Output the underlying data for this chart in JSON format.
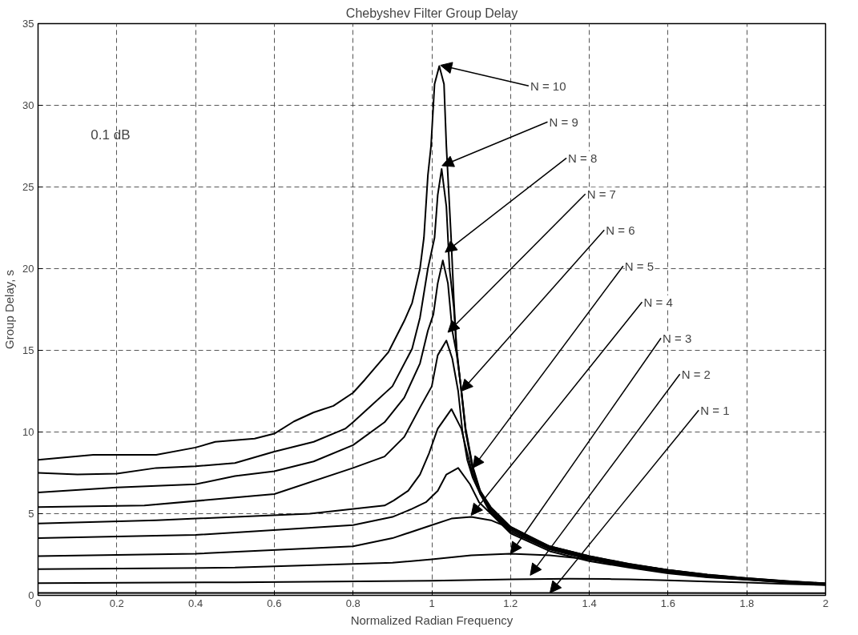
{
  "chart_data": {
    "type": "line",
    "title": "Chebyshev Filter Group Delay",
    "xlabel": "Normalized Radian Frequency",
    "ylabel": "Group Delay, s",
    "xlim": [
      0,
      2
    ],
    "ylim": [
      0,
      35
    ],
    "xticks": [
      0,
      0.2,
      0.4,
      0.6,
      0.8,
      1,
      1.2,
      1.4,
      1.6,
      1.8,
      2
    ],
    "yticks": [
      0,
      5,
      10,
      15,
      20,
      25,
      30,
      35
    ],
    "grid": true,
    "line_style": "solid",
    "series": [
      {
        "color": "#000000",
        "x": [
          0,
          0.14,
          0.3,
          0.4,
          0.45,
          0.55,
          0.6,
          0.65,
          0.7,
          0.75,
          0.8,
          0.83,
          0.89,
          0.93,
          0.95,
          0.97,
          0.98,
          0.99,
          0.998,
          1.007,
          1.019,
          1.031,
          1.037,
          1.049,
          1.056,
          1.063,
          1.075,
          1.086,
          1.104,
          1.123,
          1.15,
          1.2,
          1.3,
          1.4,
          1.5,
          1.6,
          1.7,
          1.8,
          1.9,
          2.0
        ],
        "values": [
          8.3,
          8.6,
          8.6,
          9.05,
          9.4,
          9.6,
          9.9,
          10.65,
          11.2,
          11.6,
          12.4,
          13.2,
          14.9,
          16.8,
          17.9,
          20.0,
          21.9,
          25.7,
          27.5,
          31.3,
          32.4,
          31.3,
          27.5,
          21.9,
          18.1,
          15.1,
          12.5,
          10.0,
          7.7,
          6.2,
          5.0,
          3.8,
          2.7,
          2.1,
          1.7,
          1.35,
          1.1,
          0.95,
          0.78,
          0.65
        ]
      },
      {
        "color": "#000000",
        "x": [
          0,
          0.1,
          0.2,
          0.3,
          0.4,
          0.5,
          0.6,
          0.7,
          0.78,
          0.8,
          0.9,
          0.95,
          0.97,
          0.99,
          1.007,
          1.015,
          1.025,
          1.037,
          1.045,
          1.056,
          1.063,
          1.075,
          1.086,
          1.104,
          1.123,
          1.15,
          1.2,
          1.3,
          1.4,
          1.5,
          1.6,
          1.7,
          1.8,
          1.9,
          2.0
        ],
        "values": [
          7.5,
          7.4,
          7.45,
          7.8,
          7.9,
          8.1,
          8.8,
          9.4,
          10.2,
          10.6,
          12.8,
          15.1,
          17.0,
          20.0,
          21.9,
          24.5,
          26.1,
          23.8,
          20.0,
          17.6,
          15.0,
          12.5,
          10.1,
          7.8,
          6.3,
          5.1,
          3.9,
          2.8,
          2.2,
          1.75,
          1.4,
          1.13,
          0.97,
          0.8,
          0.67
        ]
      },
      {
        "color": "#000000",
        "x": [
          0,
          0.2,
          0.4,
          0.5,
          0.6,
          0.7,
          0.8,
          0.88,
          0.93,
          0.97,
          0.99,
          1.004,
          1.015,
          1.028,
          1.041,
          1.052,
          1.063,
          1.075,
          1.086,
          1.104,
          1.123,
          1.15,
          1.2,
          1.3,
          1.4,
          1.5,
          1.6,
          1.7,
          1.8,
          1.9,
          2.0
        ],
        "values": [
          6.3,
          6.6,
          6.8,
          7.3,
          7.6,
          8.2,
          9.2,
          10.6,
          12.1,
          14.2,
          16.2,
          17.2,
          19.1,
          20.5,
          19.1,
          16.2,
          14.8,
          12.6,
          10.2,
          7.9,
          6.4,
          5.2,
          4.0,
          2.85,
          2.25,
          1.8,
          1.45,
          1.16,
          0.98,
          0.82,
          0.68
        ]
      },
      {
        "color": "#000000",
        "x": [
          0,
          0.27,
          0.6,
          0.8,
          0.88,
          0.93,
          0.97,
          1.0,
          1.015,
          1.037,
          1.052,
          1.067,
          1.078,
          1.09,
          1.104,
          1.123,
          1.15,
          1.2,
          1.3,
          1.4,
          1.5,
          1.6,
          1.7,
          1.8,
          1.9,
          2.0
        ],
        "values": [
          5.4,
          5.5,
          6.2,
          7.8,
          8.5,
          9.7,
          11.5,
          12.8,
          14.7,
          15.6,
          14.5,
          12.5,
          10.0,
          8.3,
          7.2,
          6.2,
          5.3,
          4.1,
          2.9,
          2.3,
          1.85,
          1.5,
          1.2,
          1.0,
          0.84,
          0.7
        ]
      },
      {
        "color": "#000000",
        "x": [
          0,
          0.3,
          0.69,
          0.88,
          0.903,
          0.94,
          0.97,
          0.993,
          1.015,
          1.05,
          1.075,
          1.09,
          1.104,
          1.123,
          1.15,
          1.2,
          1.3,
          1.4,
          1.5,
          1.6,
          1.7,
          1.8,
          1.9,
          2.0
        ],
        "values": [
          4.4,
          4.6,
          5.0,
          5.5,
          5.8,
          6.4,
          7.4,
          8.7,
          10.2,
          11.4,
          10.2,
          8.7,
          7.4,
          6.4,
          5.4,
          4.2,
          2.95,
          2.35,
          1.9,
          1.52,
          1.22,
          1.02,
          0.85,
          0.71
        ]
      },
      {
        "color": "#000000",
        "x": [
          0,
          0.4,
          0.8,
          0.9,
          0.95,
          0.985,
          1.015,
          1.037,
          1.067,
          1.097,
          1.12,
          1.15,
          1.2,
          1.3,
          1.4,
          1.5,
          1.6,
          1.7,
          1.8,
          1.9,
          2.0
        ],
        "values": [
          3.5,
          3.7,
          4.3,
          4.8,
          5.3,
          5.7,
          6.4,
          7.4,
          7.8,
          6.8,
          5.7,
          5.0,
          4.2,
          3.0,
          2.4,
          1.92,
          1.54,
          1.24,
          1.03,
          0.86,
          0.72
        ]
      },
      {
        "color": "#000000",
        "x": [
          0,
          0.4,
          0.8,
          0.9,
          1.0,
          1.05,
          1.1,
          1.15,
          1.2,
          1.3,
          1.4,
          1.5,
          1.6,
          1.7,
          1.8,
          1.9,
          2.0
        ],
        "values": [
          2.4,
          2.55,
          3.0,
          3.5,
          4.3,
          4.7,
          4.8,
          4.6,
          4.1,
          3.0,
          2.4,
          1.94,
          1.56,
          1.26,
          1.05,
          0.87,
          0.73
        ]
      },
      {
        "color": "#000000",
        "x": [
          0,
          0.5,
          0.9,
          1.0,
          1.1,
          1.2,
          1.3,
          1.4,
          1.5,
          1.6,
          1.7,
          1.8,
          1.9,
          2.0
        ],
        "values": [
          1.6,
          1.7,
          2.0,
          2.2,
          2.45,
          2.55,
          2.45,
          2.2,
          1.9,
          1.56,
          1.27,
          1.05,
          0.88,
          0.74
        ]
      },
      {
        "color": "#000000",
        "x": [
          0,
          0.5,
          1.0,
          1.2,
          1.35,
          1.45,
          1.5,
          1.6,
          1.7,
          1.8,
          1.9,
          2.0
        ],
        "values": [
          0.75,
          0.8,
          0.9,
          0.98,
          1.02,
          1.0,
          0.98,
          0.92,
          0.85,
          0.78,
          0.7,
          0.63
        ]
      },
      {
        "color": "#000000",
        "x": [
          0,
          1.0,
          1.5,
          2.0
        ],
        "values": [
          0.15,
          0.15,
          0.15,
          0.14
        ]
      }
    ],
    "annotations": [
      "0.1 dB",
      {
        "text": "N = 10",
        "x": 1.022,
        "y": 32.45
      },
      {
        "text": "N = 9",
        "x": 1.026,
        "y": 26.3
      },
      {
        "text": "N = 8",
        "x": 1.034,
        "y": 21.0
      },
      {
        "text": "N = 7",
        "x": 1.041,
        "y": 16.1
      },
      {
        "text": "N = 6",
        "x": 1.075,
        "y": 12.5
      },
      {
        "text": "N = 5",
        "x": 1.104,
        "y": 7.8
      },
      {
        "text": "N = 4",
        "x": 1.1,
        "y": 4.9
      },
      {
        "text": "N = 3",
        "x": 1.2,
        "y": 2.55
      },
      {
        "text": "N = 2",
        "x": 1.25,
        "y": 1.23
      },
      {
        "text": "N = 1",
        "x": 1.3,
        "y": 0.15
      }
    ]
  }
}
